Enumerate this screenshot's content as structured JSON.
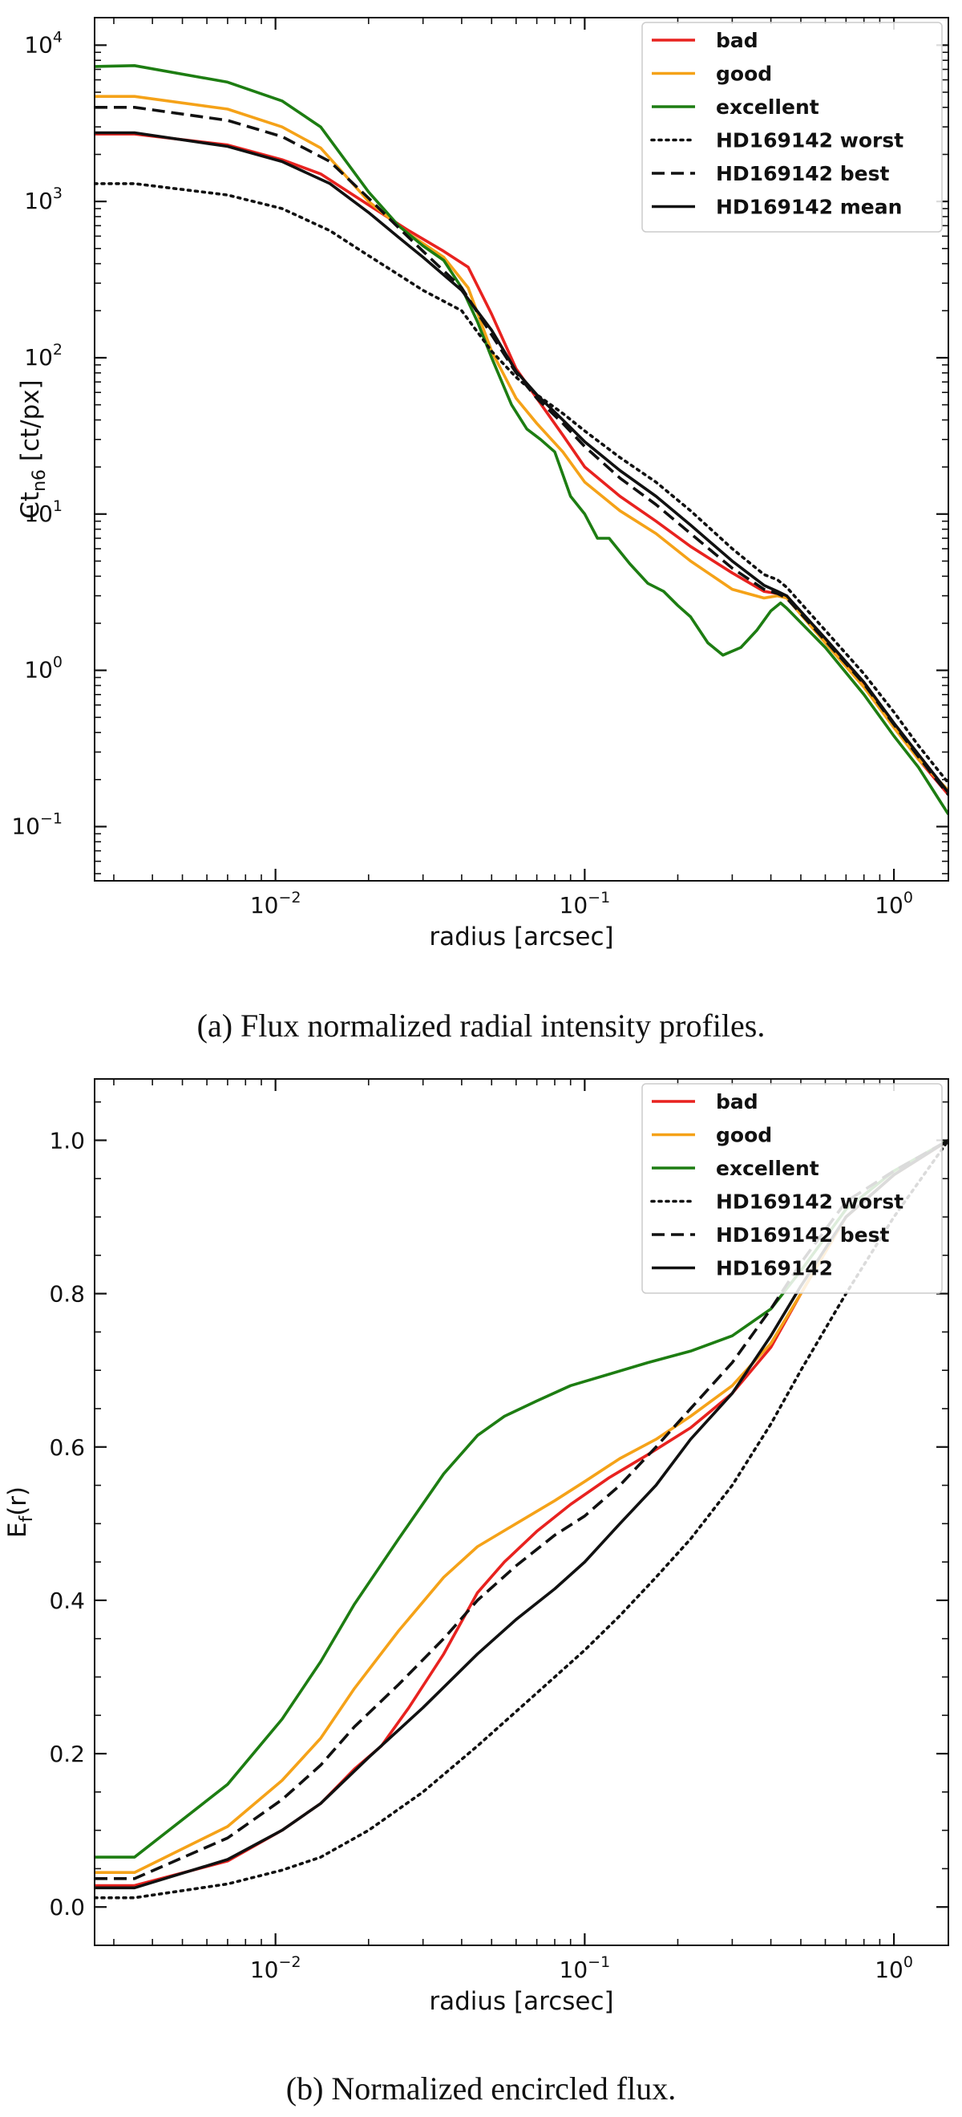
{
  "chart_data": [
    {
      "id": "a",
      "type": "line",
      "xscale": "log",
      "yscale": "log",
      "xlim": [
        0.0026,
        1.5
      ],
      "ylim": [
        0.045,
        15000
      ],
      "xlabel": "radius [arcsec]",
      "ylabel_main": "Ct",
      "ylabel_sub": "n6",
      "ylabel_tail": " [ct/px]",
      "xticks": [
        {
          "value": 0.01,
          "base": "10",
          "exp": "−2"
        },
        {
          "value": 0.1,
          "base": "10",
          "exp": "−1"
        },
        {
          "value": 1,
          "base": "10",
          "exp": "0"
        }
      ],
      "yticks": [
        {
          "value": 0.1,
          "base": "10",
          "exp": "−1"
        },
        {
          "value": 1,
          "base": "10",
          "exp": "0"
        },
        {
          "value": 10,
          "base": "10",
          "exp": "1"
        },
        {
          "value": 100,
          "base": "10",
          "exp": "2"
        },
        {
          "value": 1000,
          "base": "10",
          "exp": "3"
        },
        {
          "value": 10000,
          "base": "10",
          "exp": "4"
        }
      ],
      "legend_position": "upper-right",
      "series": [
        {
          "name": "bad",
          "color": "#e8221f",
          "dash": "solid",
          "x": [
            0.0026,
            0.0035,
            0.007,
            0.0105,
            0.014,
            0.02,
            0.027,
            0.035,
            0.042,
            0.05,
            0.06,
            0.07,
            0.085,
            0.1,
            0.13,
            0.17,
            0.22,
            0.3,
            0.38,
            0.42,
            0.45,
            0.6,
            0.8,
            1.0,
            1.2,
            1.5
          ],
          "y": [
            2700,
            2700,
            2300,
            1850,
            1500,
            950,
            650,
            480,
            380,
            190,
            85,
            55,
            32,
            20,
            13,
            9,
            6.2,
            4.2,
            3.2,
            3.1,
            3.0,
            1.55,
            0.8,
            0.44,
            0.27,
            0.16
          ]
        },
        {
          "name": "good",
          "color": "#f5a218",
          "dash": "solid",
          "x": [
            0.0026,
            0.0035,
            0.007,
            0.0105,
            0.014,
            0.02,
            0.027,
            0.035,
            0.042,
            0.05,
            0.06,
            0.07,
            0.085,
            0.1,
            0.13,
            0.17,
            0.22,
            0.3,
            0.38,
            0.42,
            0.45,
            0.6,
            0.8,
            1.0,
            1.2,
            1.5
          ],
          "y": [
            4700,
            4700,
            3900,
            3000,
            2200,
            1000,
            620,
            440,
            280,
            110,
            55,
            38,
            25,
            16,
            10.5,
            7.5,
            5,
            3.3,
            2.9,
            3.0,
            2.9,
            1.5,
            0.78,
            0.43,
            0.27,
            0.17
          ]
        },
        {
          "name": "excellent",
          "color": "#1d7d12",
          "dash": "solid",
          "x": [
            0.0026,
            0.0035,
            0.007,
            0.0105,
            0.014,
            0.02,
            0.025,
            0.03,
            0.035,
            0.04,
            0.045,
            0.05,
            0.058,
            0.065,
            0.072,
            0.08,
            0.09,
            0.1,
            0.11,
            0.12,
            0.14,
            0.16,
            0.18,
            0.2,
            0.22,
            0.25,
            0.28,
            0.32,
            0.36,
            0.4,
            0.43,
            0.45,
            0.6,
            0.8,
            1.0,
            1.2,
            1.5
          ],
          "y": [
            7300,
            7400,
            5800,
            4400,
            3000,
            1150,
            700,
            520,
            420,
            280,
            170,
            100,
            50,
            35,
            30,
            25,
            13,
            10,
            7,
            7,
            4.8,
            3.6,
            3.2,
            2.6,
            2.2,
            1.5,
            1.25,
            1.4,
            1.8,
            2.4,
            2.7,
            2.5,
            1.4,
            0.7,
            0.38,
            0.24,
            0.12
          ]
        },
        {
          "name": "HD169142 worst",
          "color": "#111111",
          "dash": "dotted",
          "x": [
            0.0026,
            0.0035,
            0.007,
            0.0105,
            0.015,
            0.02,
            0.025,
            0.03,
            0.04,
            0.05,
            0.06,
            0.07,
            0.085,
            0.1,
            0.13,
            0.17,
            0.22,
            0.3,
            0.38,
            0.42,
            0.45,
            0.6,
            0.8,
            1.0,
            1.2,
            1.5
          ],
          "y": [
            1300,
            1300,
            1100,
            900,
            650,
            450,
            340,
            270,
            200,
            110,
            75,
            58,
            44,
            34,
            23,
            16,
            10.5,
            6,
            4.1,
            3.8,
            3.4,
            1.8,
            0.95,
            0.54,
            0.33,
            0.19
          ]
        },
        {
          "name": "HD169142 best",
          "color": "#111111",
          "dash": "dashed",
          "x": [
            0.0026,
            0.0035,
            0.007,
            0.0105,
            0.015,
            0.02,
            0.025,
            0.03,
            0.04,
            0.05,
            0.06,
            0.07,
            0.085,
            0.1,
            0.13,
            0.17,
            0.22,
            0.3,
            0.38,
            0.42,
            0.45,
            0.6,
            0.8,
            1.0,
            1.2,
            1.5
          ],
          "y": [
            4000,
            4000,
            3300,
            2600,
            1800,
            1050,
            680,
            480,
            280,
            140,
            80,
            55,
            38,
            27,
            17,
            11.5,
            7.5,
            4.5,
            3.3,
            3.1,
            2.9,
            1.55,
            0.82,
            0.45,
            0.28,
            0.16
          ]
        },
        {
          "name": "HD169142 mean",
          "color": "#111111",
          "dash": "solid",
          "x": [
            0.0026,
            0.0035,
            0.007,
            0.0105,
            0.015,
            0.02,
            0.025,
            0.03,
            0.04,
            0.05,
            0.06,
            0.07,
            0.085,
            0.1,
            0.13,
            0.17,
            0.22,
            0.3,
            0.38,
            0.42,
            0.45,
            0.6,
            0.8,
            1.0,
            1.2,
            1.5
          ],
          "y": [
            2750,
            2750,
            2250,
            1800,
            1300,
            850,
            590,
            440,
            270,
            150,
            82,
            58,
            40,
            29,
            19,
            13,
            8.5,
            5,
            3.5,
            3.2,
            3.0,
            1.6,
            0.84,
            0.46,
            0.29,
            0.165
          ]
        }
      ]
    },
    {
      "id": "b",
      "type": "line",
      "xscale": "log",
      "yscale": "linear",
      "xlim": [
        0.0026,
        1.5
      ],
      "ylim": [
        -0.05,
        1.08
      ],
      "xlabel": "radius [arcsec]",
      "ylabel_main": "E",
      "ylabel_sub": "f",
      "ylabel_tail": "(r)",
      "xticks": [
        {
          "value": 0.01,
          "base": "10",
          "exp": "−2"
        },
        {
          "value": 0.1,
          "base": "10",
          "exp": "−1"
        },
        {
          "value": 1,
          "base": "10",
          "exp": "0"
        }
      ],
      "yticks": [
        {
          "value": 0.0,
          "label": "0.0"
        },
        {
          "value": 0.2,
          "label": "0.2"
        },
        {
          "value": 0.4,
          "label": "0.4"
        },
        {
          "value": 0.6,
          "label": "0.6"
        },
        {
          "value": 0.8,
          "label": "0.8"
        },
        {
          "value": 1.0,
          "label": "1.0"
        }
      ],
      "legend_position": "upper-right",
      "series": [
        {
          "name": "bad",
          "color": "#e8221f",
          "dash": "solid",
          "x": [
            0.0026,
            0.0035,
            0.007,
            0.0105,
            0.014,
            0.018,
            0.022,
            0.027,
            0.035,
            0.045,
            0.055,
            0.07,
            0.09,
            0.12,
            0.16,
            0.22,
            0.3,
            0.4,
            0.5,
            0.7,
            1.0,
            1.5
          ],
          "y": [
            0.028,
            0.028,
            0.06,
            0.1,
            0.135,
            0.18,
            0.21,
            0.26,
            0.33,
            0.41,
            0.45,
            0.49,
            0.525,
            0.56,
            0.59,
            0.625,
            0.67,
            0.73,
            0.8,
            0.9,
            0.955,
            1.0
          ]
        },
        {
          "name": "good",
          "color": "#f5a218",
          "dash": "solid",
          "x": [
            0.0026,
            0.0035,
            0.007,
            0.0105,
            0.014,
            0.018,
            0.025,
            0.035,
            0.045,
            0.06,
            0.08,
            0.1,
            0.13,
            0.17,
            0.22,
            0.3,
            0.4,
            0.5,
            0.7,
            1.0,
            1.5
          ],
          "y": [
            0.045,
            0.045,
            0.105,
            0.165,
            0.22,
            0.285,
            0.36,
            0.43,
            0.47,
            0.5,
            0.53,
            0.555,
            0.585,
            0.61,
            0.64,
            0.68,
            0.735,
            0.8,
            0.9,
            0.955,
            1.0
          ]
        },
        {
          "name": "excellent",
          "color": "#1d7d12",
          "dash": "solid",
          "x": [
            0.0026,
            0.0035,
            0.007,
            0.0105,
            0.014,
            0.018,
            0.025,
            0.035,
            0.045,
            0.055,
            0.07,
            0.09,
            0.12,
            0.16,
            0.22,
            0.3,
            0.4,
            0.5,
            0.7,
            1.0,
            1.5
          ],
          "y": [
            0.065,
            0.065,
            0.16,
            0.245,
            0.32,
            0.395,
            0.48,
            0.565,
            0.615,
            0.64,
            0.66,
            0.68,
            0.695,
            0.71,
            0.725,
            0.745,
            0.78,
            0.83,
            0.91,
            0.96,
            1.0
          ]
        },
        {
          "name": "HD169142 worst",
          "color": "#111111",
          "dash": "dotted",
          "x": [
            0.0026,
            0.0035,
            0.007,
            0.0105,
            0.014,
            0.02,
            0.03,
            0.045,
            0.06,
            0.08,
            0.1,
            0.13,
            0.17,
            0.22,
            0.3,
            0.4,
            0.5,
            0.7,
            1.0,
            1.5
          ],
          "y": [
            0.012,
            0.012,
            0.03,
            0.048,
            0.065,
            0.1,
            0.15,
            0.21,
            0.255,
            0.3,
            0.335,
            0.38,
            0.43,
            0.48,
            0.55,
            0.63,
            0.7,
            0.8,
            0.9,
            1.0
          ]
        },
        {
          "name": "HD169142 best",
          "color": "#111111",
          "dash": "dashed",
          "x": [
            0.0026,
            0.0035,
            0.007,
            0.0105,
            0.014,
            0.018,
            0.025,
            0.035,
            0.045,
            0.06,
            0.08,
            0.1,
            0.13,
            0.17,
            0.22,
            0.3,
            0.4,
            0.5,
            0.7,
            1.0,
            1.5
          ],
          "y": [
            0.037,
            0.037,
            0.09,
            0.14,
            0.185,
            0.235,
            0.29,
            0.35,
            0.4,
            0.445,
            0.485,
            0.51,
            0.55,
            0.6,
            0.65,
            0.71,
            0.78,
            0.84,
            0.92,
            0.96,
            1.0
          ]
        },
        {
          "name": "HD169142",
          "color": "#111111",
          "dash": "solid",
          "x": [
            0.0026,
            0.0035,
            0.007,
            0.0105,
            0.014,
            0.02,
            0.03,
            0.045,
            0.06,
            0.08,
            0.1,
            0.13,
            0.17,
            0.22,
            0.3,
            0.4,
            0.5,
            0.7,
            1.0,
            1.5
          ],
          "y": [
            0.025,
            0.025,
            0.062,
            0.1,
            0.135,
            0.195,
            0.26,
            0.33,
            0.375,
            0.415,
            0.45,
            0.5,
            0.55,
            0.61,
            0.67,
            0.745,
            0.81,
            0.9,
            0.955,
            1.0
          ]
        }
      ]
    }
  ],
  "captions": {
    "a": "(a) Flux normalized radial intensity profiles.",
    "b": "(b) Normalized encircled flux."
  }
}
